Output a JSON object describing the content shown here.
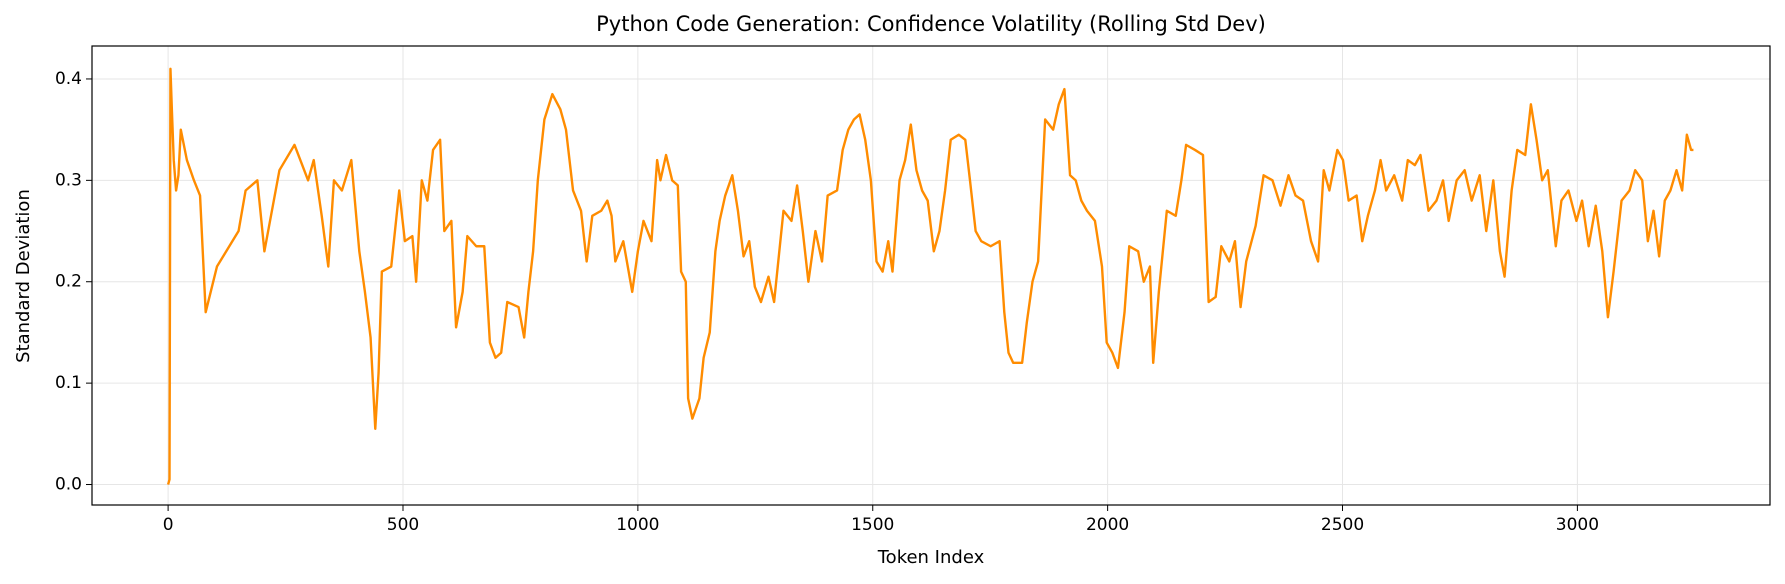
{
  "chart_data": {
    "type": "line",
    "title": "Python Code Generation: Confidence Volatility (Rolling Std Dev)",
    "x_label": "Token Index",
    "y_label": "Standard Deviation",
    "x": [
      0,
      3,
      5,
      8,
      12,
      17,
      22,
      27,
      40,
      55,
      68,
      80,
      104,
      150,
      165,
      190,
      205,
      237,
      269,
      298,
      310,
      327,
      341,
      353,
      370,
      390,
      407,
      419,
      431,
      441,
      448,
      455,
      475,
      492,
      504,
      520,
      528,
      540,
      552,
      564,
      579,
      588,
      603,
      613,
      627,
      637,
      656,
      673,
      685,
      697,
      709,
      722,
      746,
      758,
      767,
      777,
      787,
      801,
      818,
      835,
      847,
      862,
      879,
      891,
      903,
      922,
      935,
      944,
      952,
      969,
      988,
      1000,
      1012,
      1029,
      1041,
      1048,
      1060,
      1073,
      1085,
      1092,
      1102,
      1107,
      1116,
      1131,
      1140,
      1153,
      1165,
      1174,
      1186,
      1201,
      1213,
      1225,
      1237,
      1249,
      1262,
      1278,
      1290,
      1310,
      1327,
      1339,
      1351,
      1363,
      1378,
      1392,
      1404,
      1424,
      1436,
      1448,
      1460,
      1472,
      1484,
      1496,
      1508,
      1521,
      1533,
      1542,
      1557,
      1569,
      1581,
      1593,
      1605,
      1617,
      1630,
      1642,
      1654,
      1666,
      1683,
      1697,
      1707,
      1719,
      1731,
      1751,
      1770,
      1780,
      1789,
      1799,
      1818,
      1828,
      1840,
      1852,
      1867,
      1884,
      1896,
      1908,
      1920,
      1932,
      1944,
      1956,
      1973,
      1988,
      1998,
      2010,
      2022,
      2036,
      2046,
      2065,
      2077,
      2090,
      2097,
      2109,
      2126,
      2145,
      2157,
      2167,
      2186,
      2203,
      2215,
      2230,
      2242,
      2259,
      2271,
      2283,
      2295,
      2315,
      2332,
      2351,
      2368,
      2385,
      2400,
      2416,
      2433,
      2448,
      2460,
      2472,
      2489,
      2501,
      2513,
      2530,
      2542,
      2554,
      2569,
      2581,
      2593,
      2610,
      2627,
      2639,
      2654,
      2666,
      2683,
      2700,
      2714,
      2726,
      2743,
      2760,
      2775,
      2792,
      2806,
      2821,
      2835,
      2845,
      2860,
      2872,
      2889,
      2901,
      2913,
      2925,
      2937,
      2954,
      2966,
      2981,
      2998,
      3010,
      3024,
      3039,
      3053,
      3065,
      3077,
      3094,
      3111,
      3123,
      3138,
      3150,
      3162,
      3174,
      3186,
      3198,
      3211,
      3223,
      3233,
      3242,
      3247
    ],
    "series": [
      {
        "name": "Rolling Std Dev",
        "color": "#ff8c00",
        "values": [
          0,
          0.005,
          0.41,
          0.37,
          0.32,
          0.29,
          0.305,
          0.35,
          0.32,
          0.3,
          0.285,
          0.17,
          0.215,
          0.25,
          0.29,
          0.3,
          0.23,
          0.31,
          0.335,
          0.3,
          0.32,
          0.265,
          0.215,
          0.3,
          0.29,
          0.32,
          0.23,
          0.19,
          0.145,
          0.055,
          0.11,
          0.21,
          0.215,
          0.29,
          0.24,
          0.245,
          0.2,
          0.3,
          0.28,
          0.33,
          0.34,
          0.25,
          0.26,
          0.155,
          0.19,
          0.245,
          0.235,
          0.235,
          0.14,
          0.125,
          0.13,
          0.18,
          0.175,
          0.145,
          0.19,
          0.23,
          0.3,
          0.36,
          0.385,
          0.37,
          0.35,
          0.29,
          0.27,
          0.22,
          0.265,
          0.27,
          0.28,
          0.265,
          0.22,
          0.24,
          0.19,
          0.23,
          0.26,
          0.24,
          0.32,
          0.3,
          0.325,
          0.3,
          0.295,
          0.21,
          0.2,
          0.085,
          0.065,
          0.085,
          0.125,
          0.15,
          0.23,
          0.26,
          0.285,
          0.305,
          0.27,
          0.225,
          0.24,
          0.195,
          0.18,
          0.205,
          0.18,
          0.27,
          0.26,
          0.295,
          0.25,
          0.2,
          0.25,
          0.22,
          0.285,
          0.29,
          0.33,
          0.35,
          0.36,
          0.365,
          0.34,
          0.3,
          0.22,
          0.21,
          0.24,
          0.21,
          0.3,
          0.32,
          0.355,
          0.31,
          0.29,
          0.28,
          0.23,
          0.25,
          0.29,
          0.34,
          0.345,
          0.34,
          0.3,
          0.25,
          0.24,
          0.235,
          0.24,
          0.17,
          0.13,
          0.12,
          0.12,
          0.16,
          0.2,
          0.22,
          0.36,
          0.35,
          0.375,
          0.39,
          0.305,
          0.3,
          0.28,
          0.27,
          0.26,
          0.215,
          0.14,
          0.13,
          0.115,
          0.17,
          0.235,
          0.23,
          0.2,
          0.215,
          0.12,
          0.19,
          0.27,
          0.265,
          0.3,
          0.335,
          0.33,
          0.325,
          0.18,
          0.185,
          0.235,
          0.22,
          0.24,
          0.175,
          0.22,
          0.255,
          0.305,
          0.3,
          0.275,
          0.305,
          0.285,
          0.28,
          0.24,
          0.22,
          0.31,
          0.29,
          0.33,
          0.32,
          0.28,
          0.285,
          0.24,
          0.265,
          0.29,
          0.32,
          0.29,
          0.305,
          0.28,
          0.32,
          0.315,
          0.325,
          0.27,
          0.28,
          0.3,
          0.26,
          0.3,
          0.31,
          0.28,
          0.305,
          0.25,
          0.3,
          0.23,
          0.205,
          0.29,
          0.33,
          0.325,
          0.375,
          0.34,
          0.3,
          0.31,
          0.235,
          0.28,
          0.29,
          0.26,
          0.28,
          0.235,
          0.275,
          0.23,
          0.165,
          0.21,
          0.28,
          0.29,
          0.31,
          0.3,
          0.24,
          0.27,
          0.225,
          0.28,
          0.29,
          0.31,
          0.29,
          0.345,
          0.33,
          0.33
        ]
      }
    ],
    "xlim": [
      -162,
      3410
    ],
    "ylim": [
      -0.0202,
      0.4325
    ],
    "xticks": [
      0,
      500,
      1000,
      1500,
      2000,
      2500,
      3000
    ],
    "yticks": [
      {
        "value": 0,
        "label": "0.0"
      },
      0.1,
      0.2,
      0.3,
      0.4
    ],
    "grid": true
  }
}
